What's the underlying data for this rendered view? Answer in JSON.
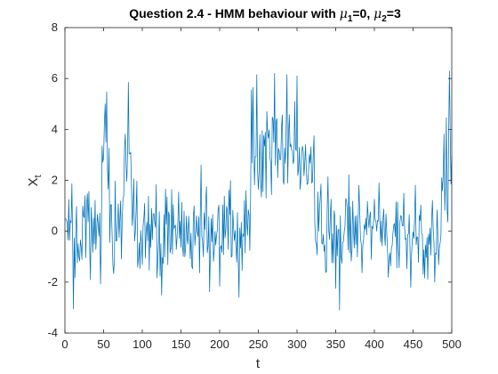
{
  "chart_data": {
    "type": "line",
    "title": {
      "prefix": "Question 2.4 - HMM behaviour with ",
      "mu": "μ",
      "sub1": "1",
      "mid": "=0, ",
      "sub2": "2",
      "suffix": "=3"
    },
    "xlabel": "t",
    "ylabel": {
      "base": "X",
      "sub": "t"
    },
    "xlim": [
      0,
      500
    ],
    "ylim": [
      -4,
      8
    ],
    "xticks": [
      0,
      50,
      100,
      150,
      200,
      250,
      300,
      350,
      400,
      450,
      500
    ],
    "yticks": [
      -4,
      -2,
      0,
      2,
      4,
      6,
      8
    ],
    "grid": false,
    "series_color": "#0072BD",
    "series": [
      {
        "regimes": [
          {
            "from": 1,
            "to": 47,
            "mean": 0
          },
          {
            "from": 48,
            "to": 57,
            "mean": 3
          },
          {
            "from": 58,
            "to": 76,
            "mean": 0
          },
          {
            "from": 77,
            "to": 86,
            "mean": 3
          },
          {
            "from": 87,
            "to": 240,
            "mean": 0
          },
          {
            "from": 241,
            "to": 322,
            "mean": 3
          },
          {
            "from": 323,
            "to": 486,
            "mean": 0
          },
          {
            "from": 487,
            "to": 500,
            "mean": 3
          }
        ],
        "noise_sd": 0.95,
        "n_points": 500,
        "anchors": [
          {
            "x": 1,
            "y": 0.5
          },
          {
            "x": 11,
            "y": -3.05
          },
          {
            "x": 52,
            "y": 5.0
          },
          {
            "x": 82,
            "y": 5.85
          },
          {
            "x": 225,
            "y": -2.6
          },
          {
            "x": 248,
            "y": 6.15
          },
          {
            "x": 271,
            "y": 6.2
          },
          {
            "x": 287,
            "y": 6.15
          },
          {
            "x": 300,
            "y": 6.1
          },
          {
            "x": 355,
            "y": -3.1
          },
          {
            "x": 478,
            "y": -2.0
          },
          {
            "x": 497,
            "y": 6.3
          }
        ]
      }
    ]
  }
}
